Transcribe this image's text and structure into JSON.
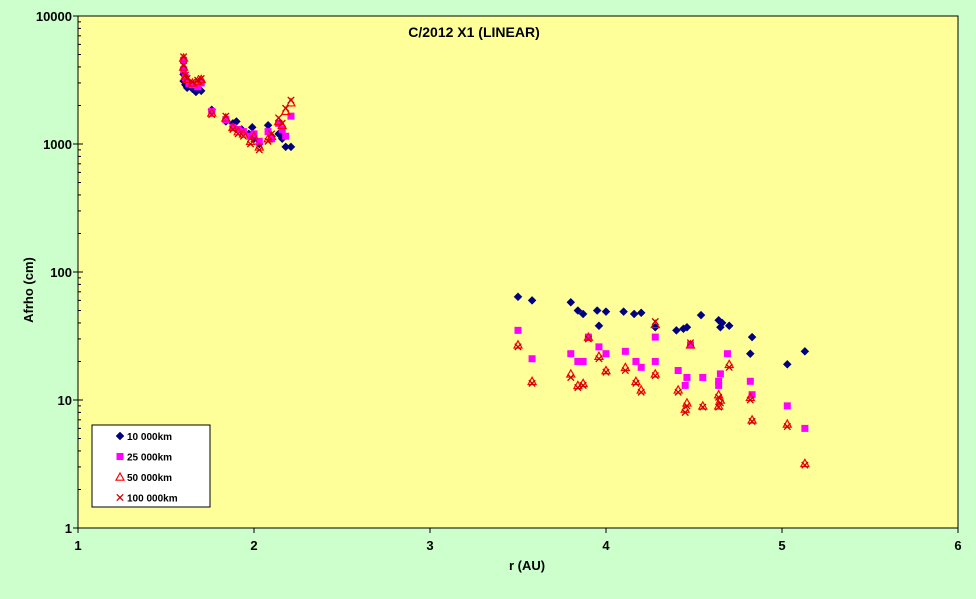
{
  "chart_data": {
    "type": "scatter",
    "title": "C/2012 X1 (LINEAR)",
    "xlabel": "r (AU)",
    "ylabel": "Afrho (cm)",
    "xlim": [
      1,
      6
    ],
    "ylim": [
      1,
      10000
    ],
    "y_scale": "log",
    "x_ticks": [
      "1",
      "2",
      "3",
      "4",
      "5",
      "6"
    ],
    "y_ticks": [
      {
        "value": 1,
        "label": "1"
      },
      {
        "value": 10,
        "label": "10"
      },
      {
        "value": 100,
        "label": "100"
      },
      {
        "value": 1000,
        "label": "1000"
      },
      {
        "value": 10000,
        "label": "10000"
      }
    ],
    "grid": false,
    "legend_position": "bottom-left",
    "series": [
      {
        "name": "10 000km",
        "marker": "diamond",
        "color": "#000080",
        "points": [
          [
            1.6,
            3100
          ],
          [
            1.6,
            3500
          ],
          [
            1.61,
            2900
          ],
          [
            1.62,
            2750
          ],
          [
            1.65,
            2700
          ],
          [
            1.67,
            2550
          ],
          [
            1.7,
            2600
          ],
          [
            1.76,
            1850
          ],
          [
            1.84,
            1500
          ],
          [
            1.88,
            1450
          ],
          [
            1.9,
            1500
          ],
          [
            1.93,
            1300
          ],
          [
            1.97,
            1200
          ],
          [
            1.99,
            1350
          ],
          [
            2.0,
            1100
          ],
          [
            2.03,
            1000
          ],
          [
            2.08,
            1400
          ],
          [
            2.1,
            1150
          ],
          [
            2.14,
            1200
          ],
          [
            2.16,
            1100
          ],
          [
            2.18,
            950
          ],
          [
            2.21,
            950
          ],
          [
            3.5,
            64
          ],
          [
            3.58,
            60
          ],
          [
            3.8,
            58
          ],
          [
            3.84,
            50
          ],
          [
            3.87,
            47
          ],
          [
            3.95,
            50
          ],
          [
            3.96,
            38
          ],
          [
            4.0,
            49
          ],
          [
            4.1,
            49
          ],
          [
            4.16,
            47
          ],
          [
            4.2,
            48
          ],
          [
            4.28,
            37
          ],
          [
            4.4,
            35
          ],
          [
            4.44,
            36
          ],
          [
            4.46,
            37
          ],
          [
            4.54,
            46
          ],
          [
            4.64,
            42
          ],
          [
            4.65,
            37
          ],
          [
            4.66,
            40
          ],
          [
            4.7,
            38
          ],
          [
            4.82,
            23
          ],
          [
            4.83,
            31
          ],
          [
            5.03,
            19
          ],
          [
            5.13,
            24
          ]
        ]
      },
      {
        "name": "25 000km",
        "marker": "square",
        "color": "#ff00ff",
        "points": [
          [
            1.6,
            4500
          ],
          [
            1.6,
            3800
          ],
          [
            1.61,
            3300
          ],
          [
            1.63,
            2950
          ],
          [
            1.65,
            2900
          ],
          [
            1.68,
            2800
          ],
          [
            1.7,
            3000
          ],
          [
            1.76,
            1800
          ],
          [
            1.84,
            1550
          ],
          [
            1.88,
            1350
          ],
          [
            1.91,
            1300
          ],
          [
            1.94,
            1250
          ],
          [
            1.98,
            1150
          ],
          [
            2.0,
            1200
          ],
          [
            2.03,
            1050
          ],
          [
            2.08,
            1250
          ],
          [
            2.1,
            1100
          ],
          [
            2.14,
            1450
          ],
          [
            2.16,
            1300
          ],
          [
            2.18,
            1150
          ],
          [
            2.21,
            1650
          ],
          [
            3.5,
            35
          ],
          [
            3.58,
            21
          ],
          [
            3.8,
            23
          ],
          [
            3.84,
            20
          ],
          [
            3.87,
            20
          ],
          [
            3.9,
            31
          ],
          [
            3.96,
            26
          ],
          [
            4.0,
            23
          ],
          [
            4.11,
            24
          ],
          [
            4.17,
            20
          ],
          [
            4.2,
            18
          ],
          [
            4.28,
            31
          ],
          [
            4.28,
            20
          ],
          [
            4.41,
            17
          ],
          [
            4.45,
            13
          ],
          [
            4.46,
            15
          ],
          [
            4.48,
            27
          ],
          [
            4.55,
            15
          ],
          [
            4.64,
            14
          ],
          [
            4.64,
            13
          ],
          [
            4.65,
            16
          ],
          [
            4.69,
            23
          ],
          [
            4.82,
            14
          ],
          [
            4.83,
            11
          ],
          [
            5.03,
            9
          ],
          [
            5.13,
            6
          ]
        ]
      },
      {
        "name": "50 000km",
        "marker": "triangle",
        "color": "#ff0000",
        "points": [
          [
            1.6,
            4700
          ],
          [
            1.6,
            4000
          ],
          [
            1.61,
            3400
          ],
          [
            1.62,
            3200
          ],
          [
            1.65,
            3000
          ],
          [
            1.68,
            3100
          ],
          [
            1.7,
            3200
          ],
          [
            1.76,
            1750
          ],
          [
            1.84,
            1600
          ],
          [
            1.88,
            1350
          ],
          [
            1.91,
            1250
          ],
          [
            1.94,
            1200
          ],
          [
            1.98,
            1050
          ],
          [
            2.0,
            1150
          ],
          [
            2.03,
            950
          ],
          [
            2.08,
            1100
          ],
          [
            2.1,
            1150
          ],
          [
            2.14,
            1500
          ],
          [
            2.16,
            1400
          ],
          [
            2.18,
            1800
          ],
          [
            2.21,
            2100
          ],
          [
            3.5,
            27
          ],
          [
            3.58,
            14
          ],
          [
            3.8,
            16
          ],
          [
            3.84,
            13
          ],
          [
            3.87,
            13.5
          ],
          [
            3.9,
            31
          ],
          [
            3.96,
            22
          ],
          [
            4.0,
            17
          ],
          [
            4.11,
            18
          ],
          [
            4.17,
            14
          ],
          [
            4.2,
            12
          ],
          [
            4.28,
            39
          ],
          [
            4.28,
            16
          ],
          [
            4.41,
            12
          ],
          [
            4.45,
            8.5
          ],
          [
            4.46,
            9.5
          ],
          [
            4.48,
            27
          ],
          [
            4.55,
            9
          ],
          [
            4.64,
            9
          ],
          [
            4.64,
            11
          ],
          [
            4.65,
            10
          ],
          [
            4.7,
            19
          ],
          [
            4.82,
            10.5
          ],
          [
            4.83,
            7
          ],
          [
            5.03,
            6.5
          ],
          [
            5.13,
            3.2
          ]
        ]
      },
      {
        "name": "100 000km",
        "marker": "x",
        "color": "#cc0000",
        "points": [
          [
            1.6,
            4800
          ],
          [
            1.6,
            4100
          ],
          [
            1.61,
            3450
          ],
          [
            1.62,
            3250
          ],
          [
            1.65,
            3050
          ],
          [
            1.68,
            3150
          ],
          [
            1.7,
            3250
          ],
          [
            1.76,
            1700
          ],
          [
            1.84,
            1650
          ],
          [
            1.88,
            1300
          ],
          [
            1.91,
            1200
          ],
          [
            1.94,
            1150
          ],
          [
            1.98,
            1000
          ],
          [
            2.0,
            1100
          ],
          [
            2.03,
            900
          ],
          [
            2.08,
            1050
          ],
          [
            2.1,
            1200
          ],
          [
            2.14,
            1600
          ],
          [
            2.16,
            1450
          ],
          [
            2.18,
            1900
          ],
          [
            2.21,
            2200
          ],
          [
            3.5,
            26
          ],
          [
            3.58,
            13.5
          ],
          [
            3.8,
            15
          ],
          [
            3.84,
            12.5
          ],
          [
            3.87,
            13
          ],
          [
            3.9,
            30
          ],
          [
            3.96,
            21
          ],
          [
            4.0,
            16.5
          ],
          [
            4.11,
            17
          ],
          [
            4.17,
            13.5
          ],
          [
            4.2,
            11.5
          ],
          [
            4.28,
            41
          ],
          [
            4.28,
            15.5
          ],
          [
            4.41,
            11.5
          ],
          [
            4.45,
            8
          ],
          [
            4.46,
            9
          ],
          [
            4.48,
            28
          ],
          [
            4.55,
            8.8
          ],
          [
            4.64,
            8.8
          ],
          [
            4.64,
            10.5
          ],
          [
            4.65,
            9.5
          ],
          [
            4.7,
            18
          ],
          [
            4.82,
            10
          ],
          [
            4.83,
            6.8
          ],
          [
            5.03,
            6.2
          ],
          [
            5.13,
            3.1
          ]
        ]
      }
    ]
  }
}
